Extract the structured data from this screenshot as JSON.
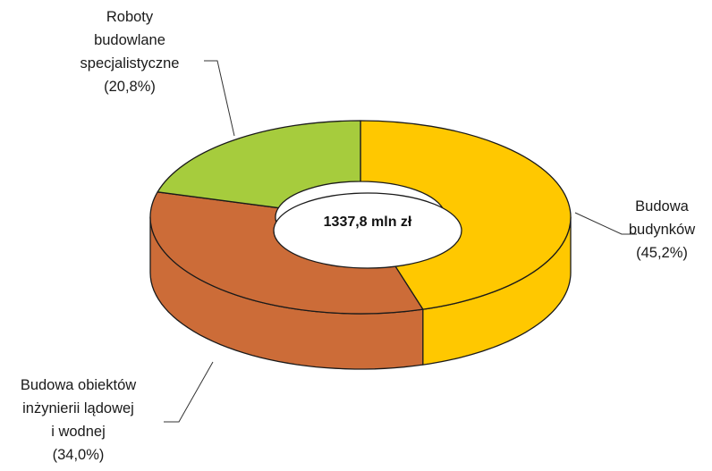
{
  "chart_data": {
    "type": "pie",
    "style": "3d-donut",
    "center_label": "1337,8 mln zł",
    "slices": [
      {
        "name_lines": [
          "Budowa",
          "budynków"
        ],
        "pct_label": "(45,2%)",
        "value": 45.2,
        "color": "#FFC800"
      },
      {
        "name_lines": [
          "Budowa obiektów",
          "inżynierii lądowej",
          "i wodnej"
        ],
        "pct_label": "(34,0%)",
        "value": 34.0,
        "color": "#CC6C38"
      },
      {
        "name_lines": [
          "Roboty",
          "budowlane",
          "specjalistyczne"
        ],
        "pct_label": "(20,8%)",
        "value": 20.8,
        "color": "#A6CC3D"
      }
    ],
    "legend": "none"
  }
}
